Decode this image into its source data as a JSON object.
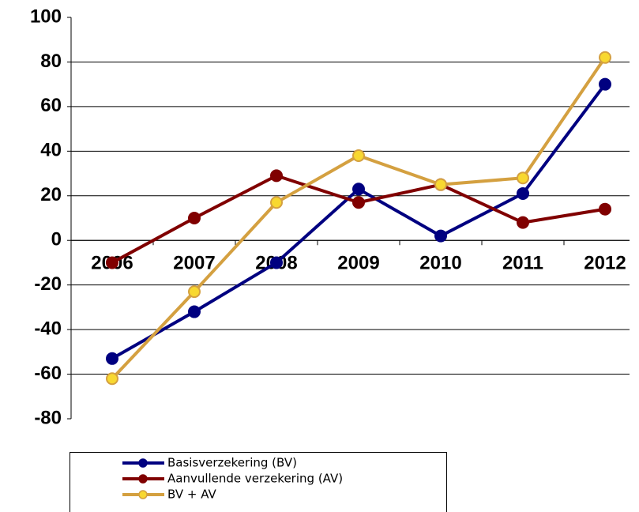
{
  "chart_data": {
    "type": "line",
    "categories": [
      "2006",
      "2007",
      "2008",
      "2009",
      "2010",
      "2011",
      "2012"
    ],
    "series": [
      {
        "name": "Basisverzekering (BV)",
        "color": "#000080",
        "marker_color": "#000080",
        "values": [
          -53,
          -32,
          -10,
          23,
          2,
          21,
          70
        ]
      },
      {
        "name": "Aanvullende verzekering (AV)",
        "color": "#800000",
        "marker_color": "#800000",
        "values": [
          -10,
          10,
          29,
          17,
          25,
          8,
          14
        ]
      },
      {
        "name": "BV + AV",
        "color": "#d4a040",
        "marker_color": "#f8d830",
        "values": [
          -62,
          -23,
          17,
          38,
          25,
          28,
          82
        ]
      }
    ],
    "ylim": [
      -80,
      100
    ],
    "yticks": [
      -80,
      -60,
      -40,
      -20,
      0,
      20,
      40,
      60,
      80,
      100
    ],
    "grid": true,
    "legend": "bottom"
  }
}
